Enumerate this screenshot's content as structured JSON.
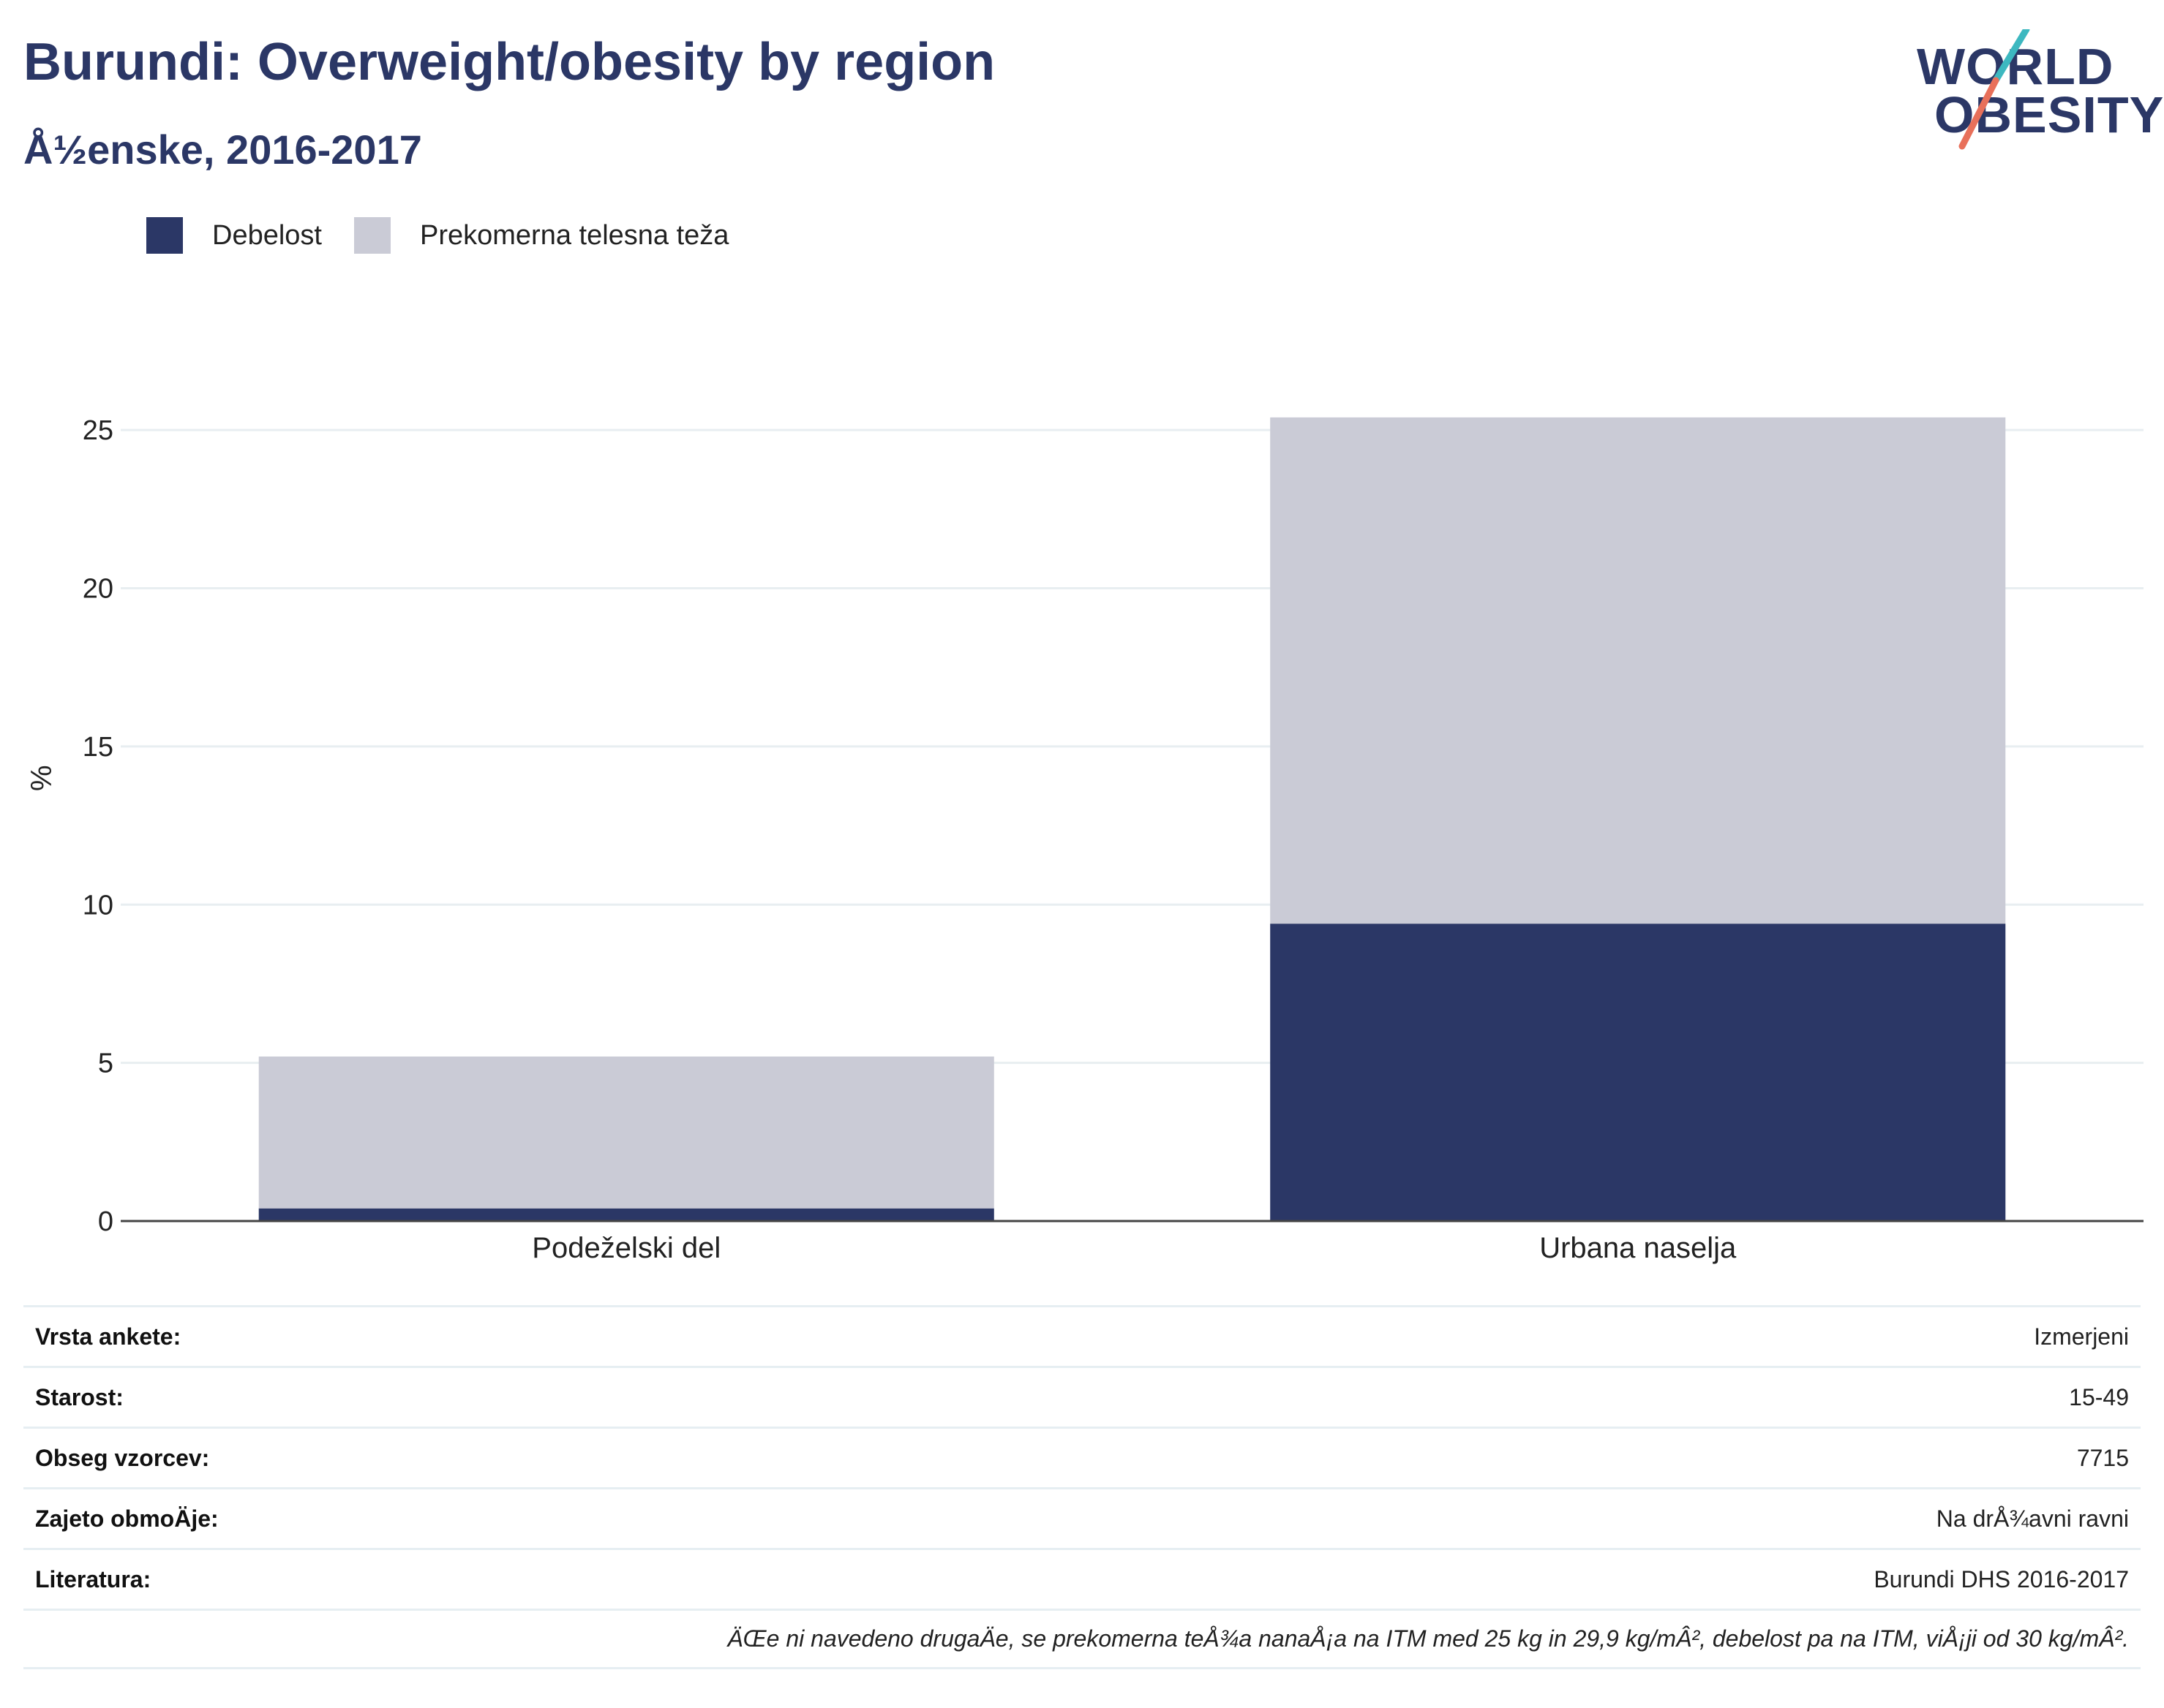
{
  "header": {
    "title": "Burundi: Overweight/obesity by region",
    "subtitle": "Å½enske, 2016-2017"
  },
  "logo": {
    "line1": "WORLD",
    "line2": "OBESITY",
    "slash_colors": [
      "#3db8c0",
      "#e8705a"
    ]
  },
  "legend": [
    {
      "label": "Debelost",
      "color": "#2b3766"
    },
    {
      "label": "Prekomerna telesna teža",
      "color": "#cacbd6"
    }
  ],
  "chart_data": {
    "type": "bar",
    "stacked": true,
    "categories": [
      "Podeželski del",
      "Urbana naselja"
    ],
    "series": [
      {
        "name": "Debelost",
        "values": [
          0.4,
          9.4
        ],
        "color": "#2b3766"
      },
      {
        "name": "Prekomerna telesna teža",
        "values": [
          4.8,
          16.0
        ],
        "color": "#cacbd6"
      }
    ],
    "ylabel": "%",
    "ylim": [
      0,
      27.5
    ],
    "yticks": [
      0,
      5,
      10,
      15,
      20,
      25
    ],
    "grid": true,
    "legend_position": "top-left"
  },
  "info": [
    {
      "key": "Vrsta ankete:",
      "value": "Izmerjeni"
    },
    {
      "key": "Starost:",
      "value": "15-49"
    },
    {
      "key": "Obseg vzorcev:",
      "value": "7715"
    },
    {
      "key": "Zajeto obmoÄje:",
      "value": "Na drÅ¾avni ravni"
    },
    {
      "key": "Literatura:",
      "value": "Burundi DHS 2016-2017"
    }
  ],
  "footnote": "ÄŒe ni navedeno drugaÄe, se prekomerna teÅ¾a nanaÅ¡a na ITM med 25 kg in 29,9 kg/mÂ², debelost pa na ITM, viÅ¡ji od 30 kg/mÂ²."
}
